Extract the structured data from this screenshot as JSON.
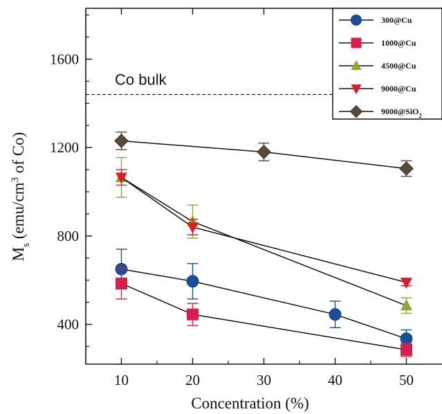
{
  "chart_data": {
    "type": "line",
    "title": "",
    "xlabel": "Concentration (%)",
    "ylabel_main": "M",
    "ylabel_sub": "s",
    "ylabel_rest": " (emu/cm",
    "ylabel_sup": "3",
    "ylabel_tail": " of Co)",
    "xlim": [
      5,
      55
    ],
    "ylim": [
      220,
      1830
    ],
    "xticks": [
      10,
      20,
      30,
      40,
      50
    ],
    "yticks": [
      400,
      800,
      1200,
      1600
    ],
    "grid": false,
    "legend_position": "top-right",
    "annotation": {
      "text": "Co bulk",
      "value": 1440,
      "style": "dashed"
    },
    "series": [
      {
        "name": "300@Cu",
        "name_main": "300@Cu",
        "name_sub": "",
        "color": "#1a4f9c",
        "marker": "circle",
        "x": [
          10,
          20,
          40,
          50
        ],
        "y": [
          650,
          595,
          445,
          335
        ],
        "err": [
          90,
          80,
          60,
          40
        ]
      },
      {
        "name": "1000@Cu",
        "name_main": "1000@Cu",
        "name_sub": "",
        "color": "#d81e4a",
        "marker": "square",
        "x": [
          10,
          20,
          50
        ],
        "y": [
          585,
          445,
          285
        ],
        "err": [
          70,
          50,
          30
        ]
      },
      {
        "name": "4500@Cu",
        "name_main": "4500@Cu",
        "name_sub": "",
        "color": "#8aa82e",
        "marker": "triangle-up",
        "x": [
          10,
          20,
          50
        ],
        "y": [
          1065,
          865,
          485
        ],
        "err": [
          90,
          75,
          35
        ]
      },
      {
        "name": "9000@Cu",
        "name_main": "9000@Cu",
        "name_sub": "",
        "color": "#d81e2a",
        "marker": "triangle-down",
        "x": [
          10,
          20,
          50
        ],
        "y": [
          1065,
          840,
          590
        ],
        "err": [
          35,
          35,
          15
        ]
      },
      {
        "name": "9000@SiO2",
        "name_main": "9000@SiO",
        "name_sub": "2",
        "color": "#5a4a3c",
        "marker": "diamond",
        "x": [
          10,
          30,
          50
        ],
        "y": [
          1230,
          1180,
          1105
        ],
        "err": [
          40,
          40,
          35
        ]
      }
    ]
  }
}
